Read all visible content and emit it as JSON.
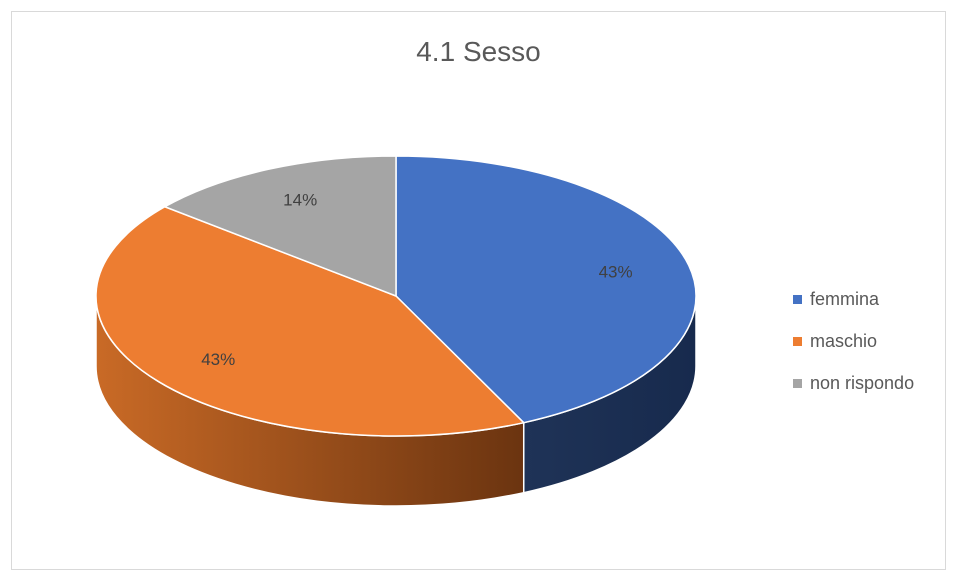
{
  "chart_data": {
    "type": "pie",
    "title": "4.1 Sesso",
    "categories": [
      "femmina",
      "maschio",
      "non rispondo"
    ],
    "values": [
      43,
      43,
      14
    ],
    "data_labels": [
      "43%",
      "43%",
      "14%"
    ],
    "colors": [
      "#4472c4",
      "#ed7d31",
      "#a5a5a5"
    ],
    "side_colors": [
      "#1f3864",
      "#c55a11",
      "#7f7f7f"
    ],
    "legend_position": "right",
    "style": "3d-pie"
  }
}
